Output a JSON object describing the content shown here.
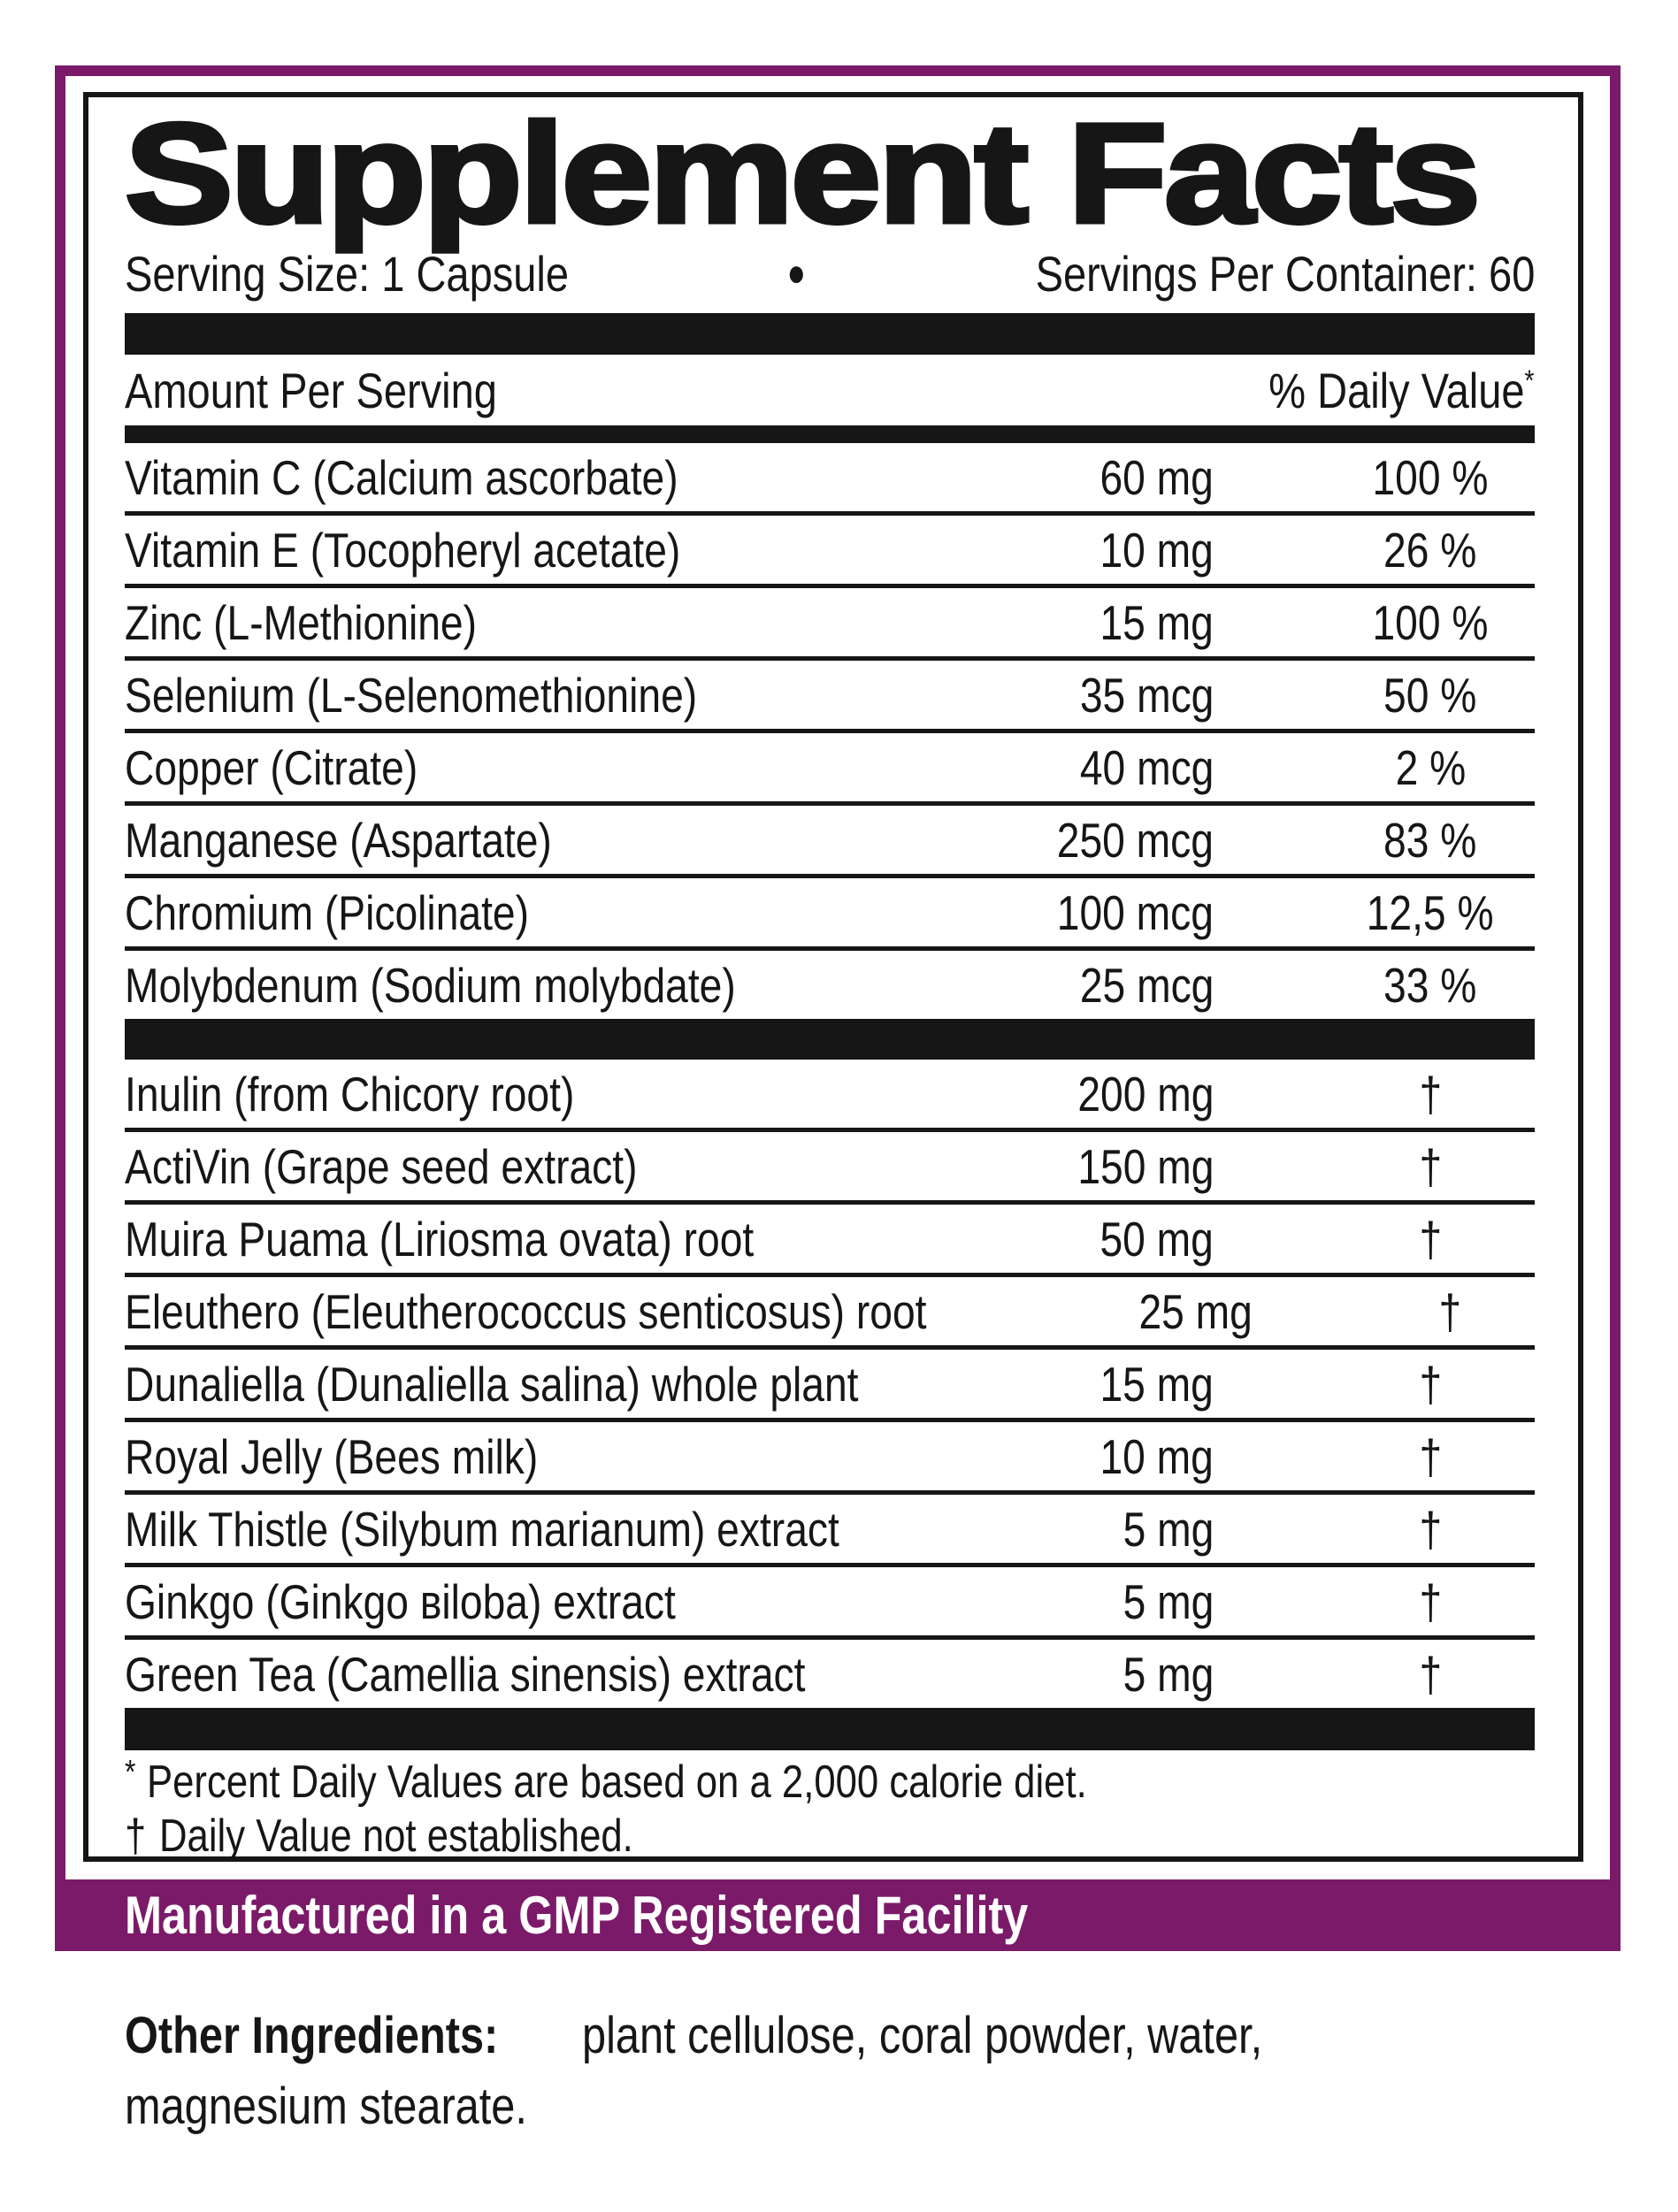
{
  "colors": {
    "accent_purple": "#7b1a68",
    "ink_black": "#161616",
    "background": "#ffffff",
    "banner_text": "#ffffff"
  },
  "label": {
    "title": "Supplement Facts",
    "serving_size": "Serving Size: 1 Capsule",
    "bullet": "●",
    "servings_per_container": "Servings Per Container: 60",
    "amount_per_serving_header": "Amount Per Serving",
    "daily_value_header": "% Daily Value",
    "daily_value_header_sup": "*",
    "minerals": [
      {
        "name": "Vitamin C (Calcium ascorbate)",
        "amount": "60 mg",
        "dv": "100 %"
      },
      {
        "name": "Vitamin E (Tocopheryl acetate)",
        "amount": "10 mg",
        "dv": "26 %"
      },
      {
        "name": "Zinc (L-Methionine)",
        "amount": "15 mg",
        "dv": "100 %"
      },
      {
        "name": "Selenium (L-Selenomethionine)",
        "amount": "35 mcg",
        "dv": "50 %"
      },
      {
        "name": "Copper (Citrate)",
        "amount": "40 mcg",
        "dv": "2 %"
      },
      {
        "name": "Manganese (Aspartate)",
        "amount": "250 mcg",
        "dv": "83 %"
      },
      {
        "name": "Chromium (Picolinate)",
        "amount": "100 mcg",
        "dv": "12,5 %"
      },
      {
        "name": "Molybdenum (Sodium molybdate)",
        "amount": "25 mcg",
        "dv": "33 %"
      }
    ],
    "botanicals": [
      {
        "name": "Inulin (from Chicory root)",
        "amount": "200 mg",
        "dv": "†"
      },
      {
        "name": "ActiVin (Grape seed extract)",
        "amount": "150 mg",
        "dv": "†"
      },
      {
        "name": "Muira Puama (Liriosma ovata) root",
        "amount": "50 mg",
        "dv": "†"
      },
      {
        "name": "Eleuthero (Eleutherococcus senticosus) root",
        "amount": "25 mg",
        "dv": "†"
      },
      {
        "name": "Dunaliella (Dunaliella salina) whole plant",
        "amount": "15 mg",
        "dv": "†"
      },
      {
        "name": "Royal Jelly (Bees milk)",
        "amount": "10 mg",
        "dv": "†"
      },
      {
        "name": "Milk Thistle (Silybum marianum) extract",
        "amount": "5 mg",
        "dv": "†"
      },
      {
        "name": "Ginkgo (Ginkgo вiloba) extract",
        "amount": "5 mg",
        "dv": "†"
      },
      {
        "name": "Green Tea (Camellia sinensis) extract",
        "amount": "5 mg",
        "dv": "†"
      }
    ],
    "footnotes": {
      "asterisk_symbol": "*",
      "asterisk_text": "Percent Daily Values are based on a 2,000 calorie diet.",
      "dagger_symbol": "†",
      "dagger_text": "Daily Value not established."
    },
    "gmp_banner": "Manufactured in a GMP Registered Facility",
    "other_ingredients": {
      "bold_label": "Other Ingredients:",
      "line1_rest": "plant cellulose, coral powder, water,",
      "line2": "magnesium stearate."
    }
  }
}
